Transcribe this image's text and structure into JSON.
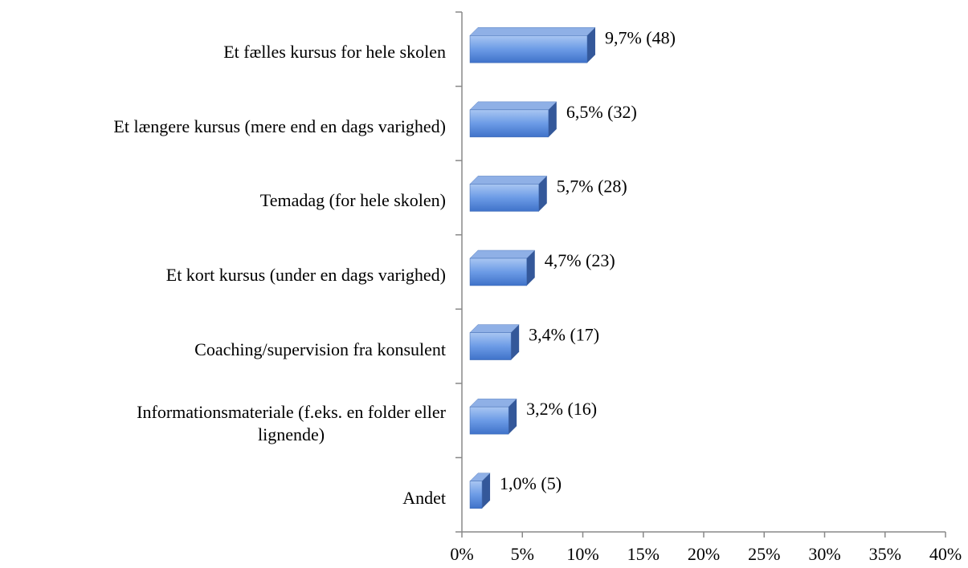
{
  "chart_data": {
    "type": "bar",
    "orientation": "horizontal",
    "categories": [
      "Et fælles kursus for hele skolen",
      "Et længere kursus (mere end en dags varighed)",
      "Temadag (for hele skolen)",
      "Et kort kursus (under en dags varighed)",
      "Coaching/supervision fra konsulent",
      "Informationsmateriale (f.eks. en folder eller\nlignende)",
      "Andet"
    ],
    "values": [
      9.7,
      6.5,
      5.7,
      4.7,
      3.4,
      3.2,
      1.0
    ],
    "value_labels": [
      "9,7% (48)",
      "6,5% (32)",
      "5,7% (28)",
      "4,7% (23)",
      "3,4% (17)",
      "3,2% (16)",
      "1,0% (5)"
    ],
    "color": "#5b8fe0",
    "xlim": [
      0,
      40
    ],
    "xticks": [
      {
        "value": 0,
        "label": "0%"
      },
      {
        "value": 5,
        "label": "5%"
      },
      {
        "value": 10,
        "label": "10%"
      },
      {
        "value": 15,
        "label": "15%"
      },
      {
        "value": 20,
        "label": "20%"
      },
      {
        "value": 25,
        "label": "25%"
      },
      {
        "value": 30,
        "label": "30%"
      },
      {
        "value": 35,
        "label": "35%"
      },
      {
        "value": 40,
        "label": "40%"
      }
    ]
  }
}
